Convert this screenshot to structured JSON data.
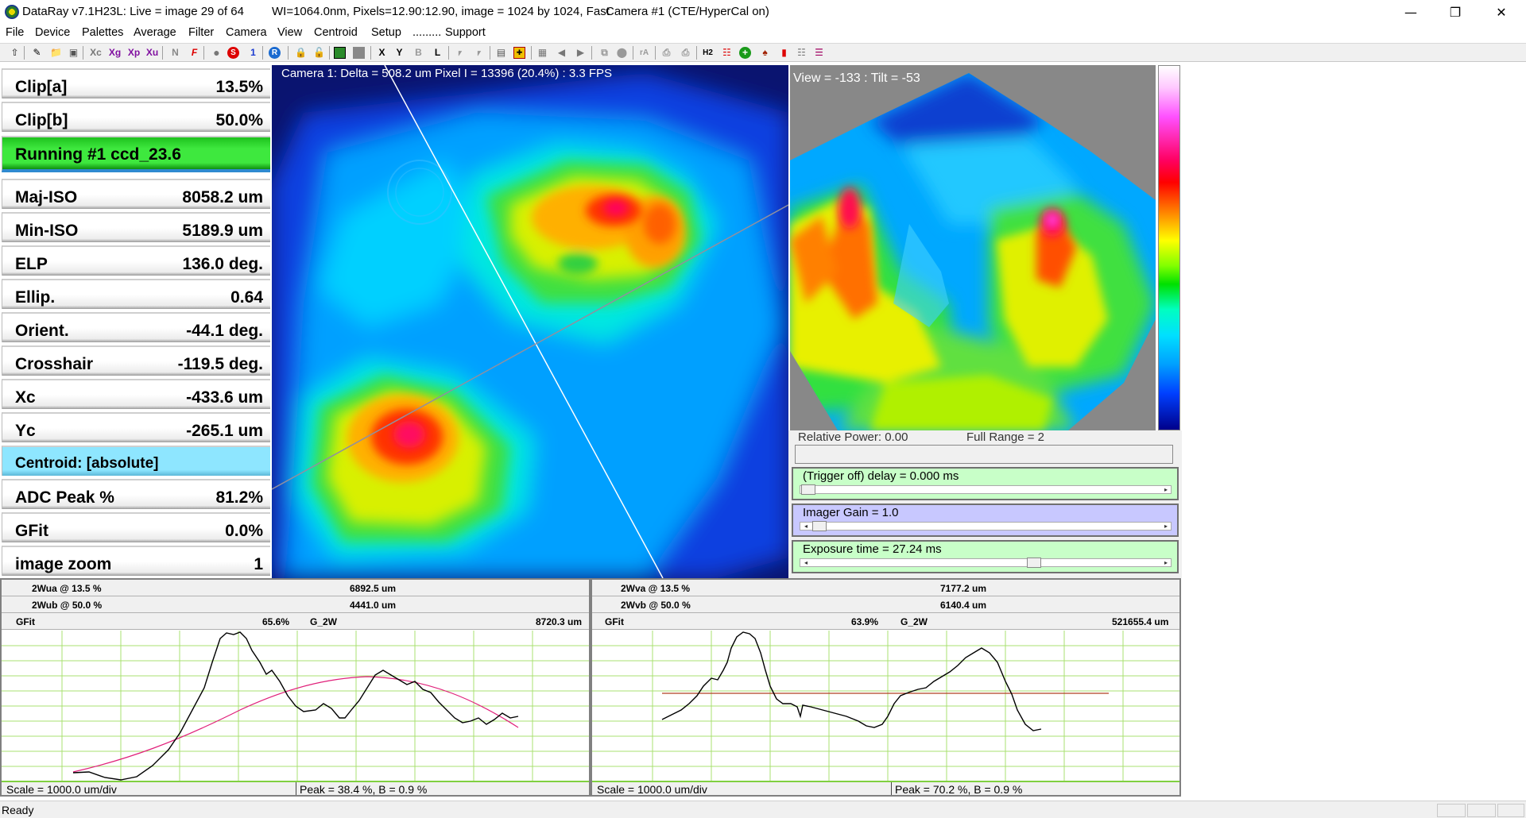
{
  "window": {
    "title": "DataRay v7.1H23L: Live = image 29 of 64",
    "info": "WI=1064.0nm, Pixels=12.90:12.90, image = 1024 by 1024, Fast",
    "camera": "Camera #1  (CTE/HyperCal on)",
    "minimize_icon": "minimize-icon",
    "maximize_icon": "restore-icon",
    "close_icon": "close-icon"
  },
  "menu": [
    "File",
    "Device",
    "Palettes",
    "Average",
    "Filter",
    "Camera",
    "View",
    "Centroid",
    "Setup",
    ".........",
    "Support"
  ],
  "toolbar": {
    "items": [
      "Xc",
      "Xg",
      "Xp",
      "Xu",
      "N",
      "F",
      "1",
      "R",
      "X",
      "Y",
      "B",
      "L",
      "rA",
      "H2"
    ],
    "icons": [
      "up-arrow-icon",
      "pencil-icon",
      "open-folder-icon",
      "save-icon",
      "stop-icon",
      "record-icon",
      "lock-icon",
      "camera-icon",
      "grid-icon",
      "back-icon",
      "forward-icon",
      "print-icon",
      "plus-icon",
      "pin-icon",
      "bars-icon"
    ]
  },
  "params": {
    "clip_a": {
      "label": "Clip[a]",
      "value": "13.5%"
    },
    "clip_b": {
      "label": "Clip[b]",
      "value": "50.0%"
    },
    "running": {
      "label": "Running #1 ccd_23.6"
    },
    "maj_iso": {
      "label": "Maj-ISO",
      "value": "8058.2 um"
    },
    "min_iso": {
      "label": "Min-ISO",
      "value": "5189.9 um"
    },
    "elp": {
      "label": "ELP",
      "value": "136.0 deg."
    },
    "ellip": {
      "label": "Ellip.",
      "value": "0.64"
    },
    "orient": {
      "label": "Orient.",
      "value": "-44.1 deg."
    },
    "crosshair": {
      "label": "Crosshair",
      "value": "-119.5 deg."
    },
    "xc": {
      "label": "Xc",
      "value": "-433.6 um"
    },
    "yc": {
      "label": "Yc",
      "value": "-265.1 um"
    },
    "centroid": {
      "label": "Centroid: [absolute]"
    },
    "adc_peak": {
      "label": "ADC Peak %",
      "value": "81.2%"
    },
    "gfit": {
      "label": "GFit",
      "value": "0.0%"
    },
    "image_zoom": {
      "label": "image zoom",
      "value": "1"
    }
  },
  "camera_view": {
    "caption": "Camera 1: Delta = 508.2 um Pixel I = 13396 (20.4%) :   3.3 FPS"
  },
  "view3d": {
    "caption": "View = -133 : Tilt = -53"
  },
  "controls": {
    "relative_power": "Relative Power: 0.00",
    "full_range": "Full Range = 2",
    "trigger_delay": {
      "label": "(Trigger off) delay = 0.000 ms",
      "color": "#c8ffc8"
    },
    "imager_gain": {
      "label": "Imager Gain = 1.0",
      "color": "#c8c8ff"
    },
    "exposure_time": {
      "label": "Exposure time = 27.24 ms",
      "color": "#c8ffc8"
    }
  },
  "profiles": [
    {
      "w_a_label": "2Wua @ 13.5 %",
      "w_a_value": "6892.5 um",
      "w_b_label": "2Wub @ 50.0 %",
      "w_b_value": "4441.0 um",
      "gfit_label": "GFit",
      "gfit_value": "65.6%",
      "g2w_label": "G_2W",
      "g2w_value": "8720.3 um",
      "scale": "Scale = 1000.0 um/div",
      "peak": "Peak = 38.4 %,  B = 0.9 %",
      "fit_color": "#e0207a"
    },
    {
      "w_a_label": "2Wva @ 13.5 %",
      "w_a_value": "7177.2 um",
      "w_b_label": "2Wvb @ 50.0 %",
      "w_b_value": "6140.4 um",
      "gfit_label": "GFit",
      "gfit_value": "63.9%",
      "g2w_label": "G_2W",
      "g2w_value": "521655.4 um",
      "scale": "Scale = 1000.0 um/div",
      "peak": "Peak = 70.2 %,  B = 0.9 %",
      "fit_color": "#b04020"
    }
  ],
  "status": {
    "text": "Ready"
  }
}
